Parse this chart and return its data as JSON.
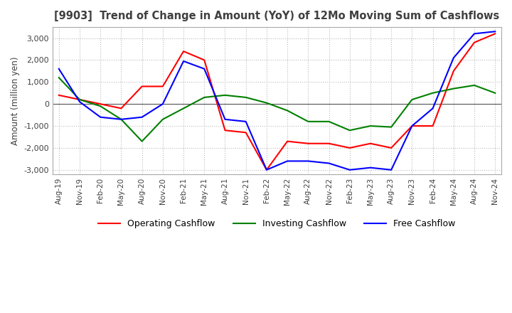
{
  "title": "[9903]  Trend of Change in Amount (YoY) of 12Mo Moving Sum of Cashflows",
  "ylabel": "Amount (million yen)",
  "ylim": [
    -3200,
    3500
  ],
  "yticks": [
    -3000,
    -2000,
    -1000,
    0,
    1000,
    2000,
    3000
  ],
  "x_labels": [
    "Aug-19",
    "Nov-19",
    "Feb-20",
    "May-20",
    "Aug-20",
    "Nov-20",
    "Feb-21",
    "May-21",
    "Aug-21",
    "Nov-21",
    "Feb-22",
    "May-22",
    "Aug-22",
    "Nov-22",
    "Feb-23",
    "May-23",
    "Aug-23",
    "Nov-23",
    "Feb-24",
    "May-24",
    "Aug-24",
    "Nov-24"
  ],
  "operating": [
    400,
    200,
    0,
    -200,
    800,
    800,
    2400,
    2000,
    -1200,
    -1300,
    -3000,
    -1700,
    -1800,
    -1800,
    -2000,
    -1800,
    -2000,
    -1000,
    -1000,
    1500,
    2800,
    3200
  ],
  "investing": [
    1200,
    200,
    -100,
    -700,
    -1700,
    -700,
    -200,
    300,
    400,
    300,
    50,
    -300,
    -800,
    -800,
    -1200,
    -1000,
    -1050,
    200,
    500,
    700,
    850,
    500
  ],
  "free": [
    1600,
    100,
    -600,
    -700,
    -600,
    0,
    1950,
    1600,
    -700,
    -800,
    -3000,
    -2600,
    -2600,
    -2700,
    -3000,
    -2900,
    -3000,
    -1000,
    -200,
    2100,
    3200,
    3300
  ],
  "operating_color": "#ff0000",
  "investing_color": "#008000",
  "free_color": "#0000ff",
  "background_color": "#ffffff",
  "grid_color": "#bbbbbb",
  "title_color": "#404040",
  "legend_labels": [
    "Operating Cashflow",
    "Investing Cashflow",
    "Free Cashflow"
  ]
}
